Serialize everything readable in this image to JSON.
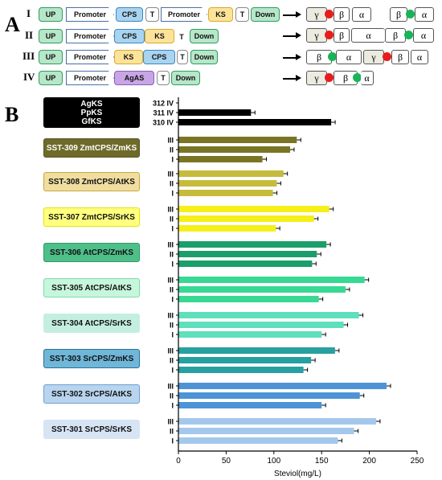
{
  "panel_a": {
    "letter": "A",
    "rows": [
      {
        "num": "I",
        "parts": [
          "UP",
          "Promoter",
          "CPS",
          "T",
          "Promoter",
          "KS",
          "T",
          "Down"
        ]
      },
      {
        "num": "II",
        "parts": [
          "UP",
          "Promoter",
          "CPS",
          "KS",
          "T",
          "Down"
        ]
      },
      {
        "num": "III",
        "parts": [
          "UP",
          "Promoter",
          "KS",
          "CPS",
          "T",
          "Down"
        ]
      },
      {
        "num": "IV",
        "parts": [
          "UP",
          "Promoter",
          "AgAS",
          "T",
          "Down"
        ]
      }
    ],
    "subunit_symbols": {
      "gamma": "γ",
      "beta": "β",
      "alpha": "α"
    }
  },
  "panel_b": {
    "letter": "B"
  },
  "chart_data": {
    "type": "bar",
    "orientation": "horizontal",
    "xlabel": "Steviol(mg/L)",
    "xlim": [
      0,
      250
    ],
    "xticks": [
      0,
      50,
      100,
      150,
      200,
      250
    ],
    "groups": [
      {
        "label": "AgKS\nPpKS\nGfKS",
        "label_lines": [
          "AgKS",
          "PpKS",
          "GfKS"
        ],
        "fill": "#000000",
        "border": "#000000",
        "text_color": "#ffffff",
        "bar_color": "#000000",
        "bars": [
          {
            "tick": "312  IV",
            "value": 0
          },
          {
            "tick": "311  IV",
            "value": 76
          },
          {
            "tick": "310  IV",
            "value": 160
          }
        ]
      },
      {
        "label": "SST-309 ZmtCPS/ZmKS",
        "fill": "#6e6a2a",
        "border": "#5b5720",
        "text_color": "#ffffff",
        "bar_color": "#7a7524",
        "bars": [
          {
            "tick": "III",
            "value": 124
          },
          {
            "tick": "II",
            "value": 117
          },
          {
            "tick": "I",
            "value": 88
          }
        ]
      },
      {
        "label": "SST-308 ZmtCPS/AtKS",
        "fill": "#f0dda0",
        "border": "#c9a93c",
        "text_color": "#111111",
        "bar_color": "#c7bb3c",
        "bars": [
          {
            "tick": "III",
            "value": 110
          },
          {
            "tick": "II",
            "value": 103
          },
          {
            "tick": "I",
            "value": 99
          }
        ]
      },
      {
        "label": "SST-307 ZmtCPS/SrKS",
        "fill": "#ffff80",
        "border": "#e4e400",
        "text_color": "#111111",
        "bar_color": "#f6ef1a",
        "bars": [
          {
            "tick": "III",
            "value": 158
          },
          {
            "tick": "II",
            "value": 142
          },
          {
            "tick": "I",
            "value": 102
          }
        ]
      },
      {
        "label": "SST-306 AtCPS/ZmKS",
        "fill": "#4fbf8a",
        "border": "#2f9b68",
        "text_color": "#111111",
        "bar_color": "#1a9e6a",
        "bars": [
          {
            "tick": "III",
            "value": 155
          },
          {
            "tick": "II",
            "value": 145
          },
          {
            "tick": "I",
            "value": 140
          }
        ]
      },
      {
        "label": "SST-305 AtCPS/AtKS",
        "fill": "#c6f6dc",
        "border": "#7fdcaa",
        "text_color": "#111111",
        "bar_color": "#37d993",
        "bars": [
          {
            "tick": "III",
            "value": 195
          },
          {
            "tick": "II",
            "value": 175
          },
          {
            "tick": "I",
            "value": 147
          }
        ]
      },
      {
        "label": "SST-304 AtCPS/SrKS",
        "fill": "#c4eee0",
        "border": "#c4eee0",
        "text_color": "#111111",
        "bar_color": "#5de0bb",
        "bars": [
          {
            "tick": "III",
            "value": 189
          },
          {
            "tick": "II",
            "value": 173
          },
          {
            "tick": "I",
            "value": 150
          }
        ]
      },
      {
        "label": "SST-303 SrCPS/ZmKS",
        "fill": "#6fb6d8",
        "border": "#2e6f96",
        "text_color": "#111111",
        "bar_color": "#26a0a0",
        "bars": [
          {
            "tick": "III",
            "value": 164
          },
          {
            "tick": "II",
            "value": 139
          },
          {
            "tick": "I",
            "value": 131
          }
        ]
      },
      {
        "label": "SST-302  SrCPS/AtKS",
        "fill": "#b8d4ee",
        "border": "#6f9fd0",
        "text_color": "#111111",
        "bar_color": "#4d93d6",
        "bars": [
          {
            "tick": "III",
            "value": 218
          },
          {
            "tick": "II",
            "value": 190
          },
          {
            "tick": "I",
            "value": 150
          }
        ]
      },
      {
        "label": "SST-301  SrCPS/SrKS",
        "fill": "#d6e4f4",
        "border": "#d6e4f4",
        "text_color": "#111111",
        "bar_color": "#a4c8ec",
        "bars": [
          {
            "tick": "III",
            "value": 207
          },
          {
            "tick": "II",
            "value": 184
          },
          {
            "tick": "I",
            "value": 167
          }
        ]
      }
    ]
  }
}
